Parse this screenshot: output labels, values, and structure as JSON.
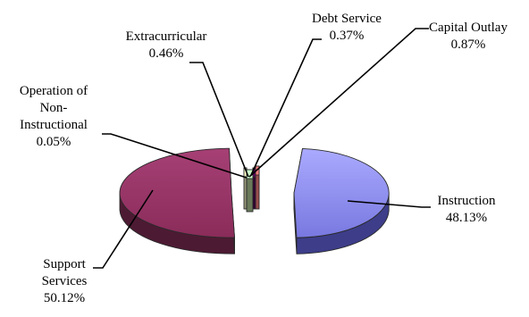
{
  "chart_data": {
    "type": "pie",
    "style": "3d-exploded",
    "title": "",
    "legend": "none",
    "slices": [
      {
        "key": "instruction",
        "lines": [
          "Instruction",
          "48.13%"
        ],
        "value": 48.13,
        "color": "#9999ff",
        "side": "#3d3d8a"
      },
      {
        "key": "support-services",
        "lines": [
          "Support",
          "Services",
          "50.12%"
        ],
        "value": 50.12,
        "color": "#993366",
        "side": "#4d1a33"
      },
      {
        "key": "operation-non-instructional",
        "lines": [
          "Operation of",
          "Non-",
          "Instructional",
          "0.05%"
        ],
        "value": 0.05,
        "color": "#ffffcc",
        "side": "#99997a"
      },
      {
        "key": "extracurricular",
        "lines": [
          "Extracurricular",
          "0.46%"
        ],
        "value": 0.46,
        "color": "#ccffcc",
        "side": "#6a7a5a"
      },
      {
        "key": "debt-service",
        "lines": [
          "Debt Service",
          "0.37%"
        ],
        "value": 0.37,
        "color": "#660066",
        "side": "#330033"
      },
      {
        "key": "capital-outlay",
        "lines": [
          "Capital Outlay",
          "0.87%"
        ],
        "value": 0.87,
        "color": "#ff8080",
        "side": "#994d4d"
      }
    ]
  }
}
